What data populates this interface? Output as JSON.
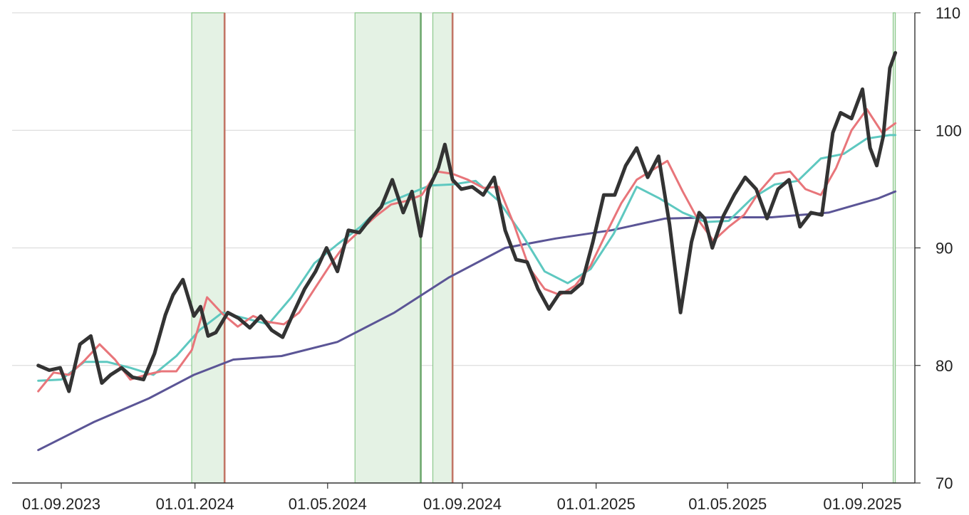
{
  "chart_data": {
    "type": "line",
    "title": "",
    "xlabel": "",
    "ylabel": "",
    "ylim": [
      70,
      110
    ],
    "y_ticks": [
      "70",
      "80",
      "90",
      "100",
      "110"
    ],
    "x_ticks": [
      "01.09.2023",
      "01.01.2024",
      "01.05.2024",
      "01.09.2024",
      "01.01.2025",
      "01.05.2025",
      "01.09.2025"
    ],
    "x_range": [
      "2023-08-11",
      "2025-10-03"
    ],
    "grid": "horizontal",
    "legend": "none",
    "colors": {
      "price": "#333333",
      "fast_ma": "#e8757a",
      "mid_ma": "#5ec8c0",
      "slow_ma": "#5b5596",
      "band_fill": "#e4f2e4",
      "band_edge": "#8cc98c",
      "entry_line": "#6ea86e",
      "exit_line": "#c27666",
      "grid": "#dddddd"
    },
    "shaded_periods": [
      {
        "start": "2023-12-29",
        "end": "2024-01-28",
        "end_marker": "exit"
      },
      {
        "start": "2024-05-26",
        "end": "2024-07-25",
        "end_marker": "entry"
      },
      {
        "start": "2024-08-05",
        "end": "2024-08-23",
        "end_marker": "exit"
      },
      {
        "start": "2025-09-29",
        "end": "2025-10-01",
        "end_marker": "none"
      }
    ],
    "series": [
      {
        "role": "price",
        "x": [
          "2023-08-11",
          "2023-08-21",
          "2023-08-31",
          "2023-09-08",
          "2023-09-18",
          "2023-09-28",
          "2023-10-08",
          "2023-10-16",
          "2023-10-26",
          "2023-11-05",
          "2023-11-15",
          "2023-11-25",
          "2023-12-05",
          "2023-12-12",
          "2023-12-21",
          "2023-12-31",
          "2024-01-06",
          "2024-01-13",
          "2024-01-20",
          "2024-01-31",
          "2024-02-10",
          "2024-02-20",
          "2024-03-01",
          "2024-03-11",
          "2024-03-21",
          "2024-03-31",
          "2024-04-10",
          "2024-04-20",
          "2024-04-30",
          "2024-05-10",
          "2024-05-20",
          "2024-05-30",
          "2024-06-09",
          "2024-06-19",
          "2024-06-29",
          "2024-07-09",
          "2024-07-17",
          "2024-07-25",
          "2024-08-01",
          "2024-08-10",
          "2024-08-16",
          "2024-08-23",
          "2024-08-31",
          "2024-09-10",
          "2024-09-20",
          "2024-09-30",
          "2024-10-10",
          "2024-10-20",
          "2024-10-30",
          "2024-11-09",
          "2024-11-19",
          "2024-11-29",
          "2024-12-09",
          "2024-12-19",
          "2024-12-29",
          "2025-01-08",
          "2025-01-18",
          "2025-01-28",
          "2025-02-07",
          "2025-02-17",
          "2025-02-27",
          "2025-03-09",
          "2025-03-19",
          "2025-03-29",
          "2025-04-05",
          "2025-04-10",
          "2025-04-17",
          "2025-04-27",
          "2025-05-07",
          "2025-05-17",
          "2025-05-27",
          "2025-06-06",
          "2025-06-16",
          "2025-06-26",
          "2025-07-06",
          "2025-07-16",
          "2025-07-26",
          "2025-08-05",
          "2025-08-12",
          "2025-08-22",
          "2025-09-01",
          "2025-09-08",
          "2025-09-14",
          "2025-09-20",
          "2025-09-26",
          "2025-10-01"
        ],
        "values": [
          80.0,
          79.6,
          79.8,
          77.8,
          81.8,
          82.5,
          78.5,
          79.2,
          79.8,
          79.0,
          78.8,
          81.0,
          84.3,
          86.0,
          87.3,
          84.2,
          85.0,
          82.5,
          82.8,
          84.5,
          84.0,
          83.2,
          84.2,
          83.0,
          82.4,
          84.5,
          86.5,
          88.0,
          90.0,
          88.0,
          91.5,
          91.3,
          92.5,
          93.5,
          95.8,
          93.0,
          94.8,
          91.0,
          95.0,
          96.8,
          98.8,
          95.8,
          95.0,
          95.2,
          94.5,
          96.0,
          91.5,
          89.0,
          88.8,
          86.5,
          84.8,
          86.2,
          86.2,
          87.0,
          90.5,
          94.5,
          94.5,
          97.0,
          98.5,
          96.0,
          97.8,
          92.0,
          84.5,
          90.5,
          93.0,
          92.5,
          90.0,
          92.7,
          94.5,
          96.0,
          95.0,
          92.5,
          95.0,
          95.8,
          91.8,
          93.0,
          92.8,
          99.8,
          101.5,
          101.0,
          103.5,
          98.5,
          97.0,
          99.5,
          105.3,
          106.6
        ]
      },
      {
        "role": "fast_ma",
        "x": [
          "2023-08-11",
          "2023-08-25",
          "2023-09-08",
          "2023-09-22",
          "2023-10-06",
          "2023-10-20",
          "2023-11-03",
          "2023-11-17",
          "2023-12-01",
          "2023-12-15",
          "2023-12-29",
          "2024-01-12",
          "2024-01-26",
          "2024-02-09",
          "2024-02-23",
          "2024-03-08",
          "2024-03-22",
          "2024-04-05",
          "2024-04-19",
          "2024-05-03",
          "2024-05-17",
          "2024-05-31",
          "2024-06-14",
          "2024-06-28",
          "2024-07-12",
          "2024-07-26",
          "2024-08-09",
          "2024-08-23",
          "2024-09-06",
          "2024-09-20",
          "2024-10-04",
          "2024-10-18",
          "2024-11-01",
          "2024-11-15",
          "2024-11-29",
          "2024-12-13",
          "2024-12-27",
          "2025-01-10",
          "2025-01-24",
          "2025-02-07",
          "2025-02-21",
          "2025-03-07",
          "2025-03-21",
          "2025-04-04",
          "2025-04-18",
          "2025-05-02",
          "2025-05-16",
          "2025-05-30",
          "2025-06-13",
          "2025-06-27",
          "2025-07-11",
          "2025-07-25",
          "2025-08-08",
          "2025-08-22",
          "2025-09-05",
          "2025-09-19",
          "2025-10-01"
        ],
        "values": [
          77.8,
          79.4,
          79.2,
          80.4,
          81.8,
          80.5,
          78.8,
          79.2,
          79.5,
          79.5,
          81.3,
          85.8,
          84.4,
          83.3,
          84.2,
          83.7,
          83.5,
          84.5,
          86.5,
          88.5,
          90.3,
          91.5,
          92.7,
          93.7,
          94.0,
          94.5,
          96.5,
          96.3,
          95.8,
          95.1,
          95.2,
          92.0,
          88.3,
          86.5,
          86.0,
          86.8,
          88.5,
          91.2,
          93.8,
          95.8,
          96.6,
          97.4,
          94.8,
          92.4,
          90.6,
          91.8,
          92.8,
          94.8,
          96.3,
          96.5,
          95.0,
          94.5,
          96.8,
          100.0,
          101.8,
          99.8,
          100.6
        ]
      },
      {
        "role": "mid_ma",
        "x": [
          "2023-08-11",
          "2023-09-01",
          "2023-09-22",
          "2023-10-13",
          "2023-11-03",
          "2023-11-24",
          "2023-12-15",
          "2024-01-05",
          "2024-01-26",
          "2024-02-16",
          "2024-03-08",
          "2024-03-29",
          "2024-04-19",
          "2024-05-10",
          "2024-05-31",
          "2024-06-21",
          "2024-07-12",
          "2024-08-02",
          "2024-08-23",
          "2024-09-13",
          "2024-10-04",
          "2024-10-25",
          "2024-11-15",
          "2024-12-06",
          "2024-12-27",
          "2025-01-17",
          "2025-02-07",
          "2025-02-28",
          "2025-03-21",
          "2025-04-11",
          "2025-05-02",
          "2025-05-23",
          "2025-06-13",
          "2025-07-04",
          "2025-07-25",
          "2025-08-15",
          "2025-09-05",
          "2025-09-26",
          "2025-10-01"
        ],
        "values": [
          78.7,
          78.8,
          80.3,
          80.3,
          79.8,
          79.2,
          80.8,
          83.0,
          84.5,
          84.0,
          83.5,
          85.8,
          88.7,
          90.3,
          91.8,
          93.7,
          94.5,
          95.3,
          95.4,
          95.7,
          94.0,
          91.2,
          88.0,
          87.0,
          88.2,
          91.2,
          95.2,
          94.2,
          93.0,
          92.2,
          92.3,
          94.2,
          95.4,
          95.7,
          97.6,
          98.0,
          99.3,
          99.6,
          99.6
        ]
      },
      {
        "role": "slow_ma",
        "x": [
          "2023-08-11",
          "2023-10-01",
          "2023-11-20",
          "2023-12-31",
          "2024-02-05",
          "2024-03-20",
          "2024-05-10",
          "2024-07-01",
          "2024-08-20",
          "2024-10-10",
          "2024-11-25",
          "2025-01-15",
          "2025-03-05",
          "2025-04-20",
          "2025-06-10",
          "2025-08-01",
          "2025-09-15",
          "2025-10-01"
        ],
        "values": [
          72.8,
          75.2,
          77.2,
          79.2,
          80.5,
          80.8,
          82.0,
          84.5,
          87.5,
          90.0,
          90.8,
          91.5,
          92.5,
          92.6,
          92.6,
          93.0,
          94.2,
          94.8
        ]
      }
    ]
  }
}
